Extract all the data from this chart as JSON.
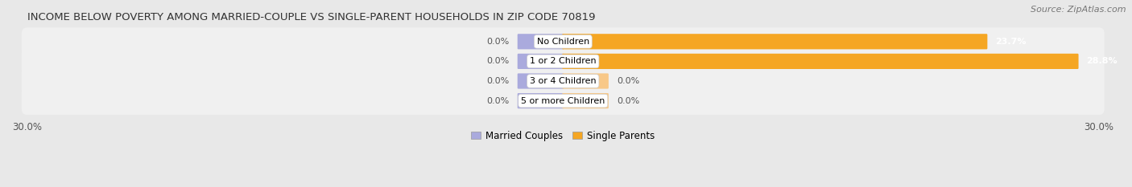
{
  "title": "INCOME BELOW POVERTY AMONG MARRIED-COUPLE VS SINGLE-PARENT HOUSEHOLDS IN ZIP CODE 70819",
  "source": "Source: ZipAtlas.com",
  "categories": [
    "No Children",
    "1 or 2 Children",
    "3 or 4 Children",
    "5 or more Children"
  ],
  "married_values": [
    0.0,
    0.0,
    0.0,
    0.0
  ],
  "single_values": [
    23.7,
    28.8,
    0.0,
    0.0
  ],
  "xlim_min": -30.0,
  "xlim_max": 30.0,
  "married_color": "#aaaadd",
  "single_color": "#f5a623",
  "single_color_light": "#f8c888",
  "background_color": "#e8e8e8",
  "row_bg_color": "#f0f0f0",
  "bar_height": 0.68,
  "title_fontsize": 9.5,
  "source_fontsize": 8,
  "label_fontsize": 8,
  "value_fontsize": 8,
  "tick_fontsize": 8.5,
  "legend_fontsize": 8.5,
  "left_tick_label": "30.0%",
  "right_tick_label": "30.0%"
}
